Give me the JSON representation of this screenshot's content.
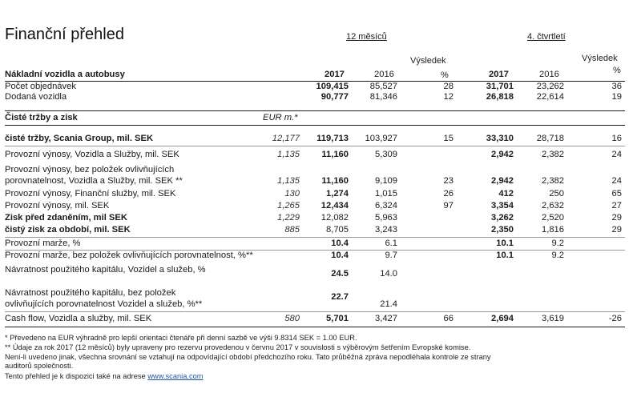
{
  "title": "Finanční přehled",
  "period_12m": "12 měsíců",
  "period_q4": "4. čtvrtletí",
  "section1": "Nákladní vozidla a autobusy",
  "col_2017": "2017",
  "col_2016": "2016",
  "col_result_line1": "Výsledek",
  "col_result_line2": "%",
  "section2": "Čisté tržby a zisk",
  "eur_header": "EUR m.*",
  "rows": {
    "r1": {
      "label": "Počet objednávek",
      "eur": "",
      "a": "109,415",
      "b": "85,527",
      "c": "28",
      "d": "31,701",
      "e": "23,262",
      "f": "36"
    },
    "r2": {
      "label": "Dodaná vozidla",
      "eur": "",
      "a": "90,777",
      "b": "81,346",
      "c": "12",
      "d": "26,818",
      "e": "22,614",
      "f": "19"
    },
    "r3": {
      "label": "čisté tržby, Scania Group, mil. SEK",
      "eur": "12,177",
      "a": "119,713",
      "b": "103,927",
      "c": "15",
      "d": "33,310",
      "e": "28,718",
      "f": "16"
    },
    "r4": {
      "label": "Provozní výnosy, Vozidla a Služby, mil. SEK",
      "eur": "1,135",
      "a": "11,160",
      "b": "5,309",
      "c": "",
      "d": "2,942",
      "e": "2,382",
      "f": "24"
    },
    "r5": {
      "label1": "Provozní výnosy, bez položek ovlivňujících",
      "label2": "porovnatelnost, Vozidla a Služby, mil. SEK **",
      "eur": "1,135",
      "a": "11,160",
      "b": "9,109",
      "c": "23",
      "d": "2,942",
      "e": "2,382",
      "f": "24"
    },
    "r6": {
      "label": "Provozní výnosy, Finanční služby, mil. SEK",
      "eur": "130",
      "a": "1,274",
      "b": "1,015",
      "c": "26",
      "d": "412",
      "e": "250",
      "f": "65"
    },
    "r7": {
      "label": "Provozní výnosy, mil. SEK",
      "eur": "1,265",
      "a": "12,434",
      "b": "6,324",
      "c": "97",
      "d": "3,354",
      "e": "2,632",
      "f": "27"
    },
    "r8": {
      "label": "Zisk před zdaněním, mil SEK",
      "eur": "1,229",
      "a": "12,082",
      "b": "5,963",
      "c": "",
      "d": "3,262",
      "e": "2,520",
      "f": "29"
    },
    "r9": {
      "label": "čistý zisk za období, mil. SEK",
      "eur": "885",
      "a": "8,705",
      "b": "3,243",
      "c": "",
      "d": "2,350",
      "e": "1,816",
      "f": "29"
    },
    "r10": {
      "label": "Provozní marže, %",
      "a": "10.4",
      "b": "6.1",
      "d": "10.1",
      "e": "9.2"
    },
    "r11": {
      "label": "Provozní marže, bez položek ovlivňujících porovnatelnost, %**",
      "a": "10.4",
      "b": "9.7",
      "d": "10.1",
      "e": "9.2"
    },
    "r12": {
      "label": "Návratnost použitého kapitálu, Vozidel a služeb, %",
      "a": "24.5",
      "b": "14.0"
    },
    "r13": {
      "label1": "Návratnost použitého kapitálu, bez položek",
      "label2": "ovlivňujících porovnatelnost Vozidel a služeb, %**",
      "a": "22.7",
      "b": "21.4"
    },
    "r14": {
      "label": "Cash flow, Vozidla a služby, mil. SEK",
      "eur": "580",
      "a": "5,701",
      "b": "3,427",
      "c": "66",
      "d": "2,694",
      "e": "3,619",
      "f": "-26"
    }
  },
  "footnotes": {
    "f1": "* Převedeno na EUR výhradně pro lepší orientaci čtenáře při denní sazbě ve výši 9.8314 SEK = 1.00 EUR.",
    "f2": "** Údaje za rok 2017 (12 měsíců) byly upraveny pro rezervu provedenou v červnu 2017 v souvislosti s výběrovým šetřením Evropské komise.",
    "f3": "Není-li uvedeno jinak, všechna srovnání se vztahují na odpovídající období předchozího roku. Tato průběžná zpráva nepodléhala kontrole ze strany",
    "f4": "auditorů společnosti.",
    "f5_text": "Tento přehled je k dispozici také na adrese ",
    "f5_link": "www.scania.com"
  }
}
